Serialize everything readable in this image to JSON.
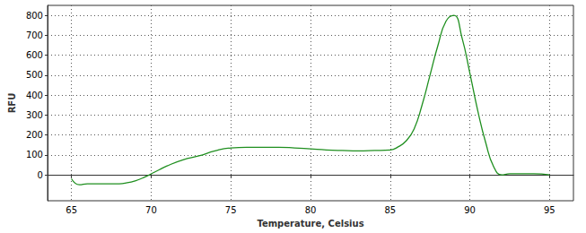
{
  "chart_data": {
    "type": "line",
    "x_label": "Temperature, Celsius",
    "y_label": "RFU",
    "series": [
      {
        "name": "RFU",
        "color": "#1f8f1f",
        "x": [
          65,
          65.5,
          66,
          67,
          68,
          68.5,
          69,
          69.5,
          70,
          70.5,
          71,
          72,
          73,
          74,
          75,
          76,
          77,
          78,
          79,
          80,
          81,
          82,
          83,
          84,
          85,
          85.5,
          86,
          86.5,
          87,
          87.5,
          88,
          88.5,
          89,
          89.5,
          90,
          90.5,
          91,
          91.5,
          92,
          92.5,
          93,
          94,
          95
        ],
        "values": [
          -20,
          -50,
          -45,
          -45,
          -45,
          -40,
          -30,
          -15,
          5,
          25,
          45,
          75,
          95,
          120,
          135,
          138,
          138,
          138,
          135,
          130,
          125,
          122,
          120,
          122,
          125,
          140,
          170,
          230,
          350,
          500,
          650,
          770,
          800,
          690,
          510,
          320,
          160,
          40,
          0,
          5,
          5,
          5,
          0
        ]
      }
    ],
    "xlim": [
      63.5,
      96.5
    ],
    "xticks": [
      65,
      70,
      75,
      80,
      85,
      90,
      95
    ],
    "ylim": [
      -130,
      850
    ],
    "yticks": [
      0,
      100,
      200,
      300,
      400,
      500,
      600,
      700,
      800
    ],
    "grid": true
  }
}
